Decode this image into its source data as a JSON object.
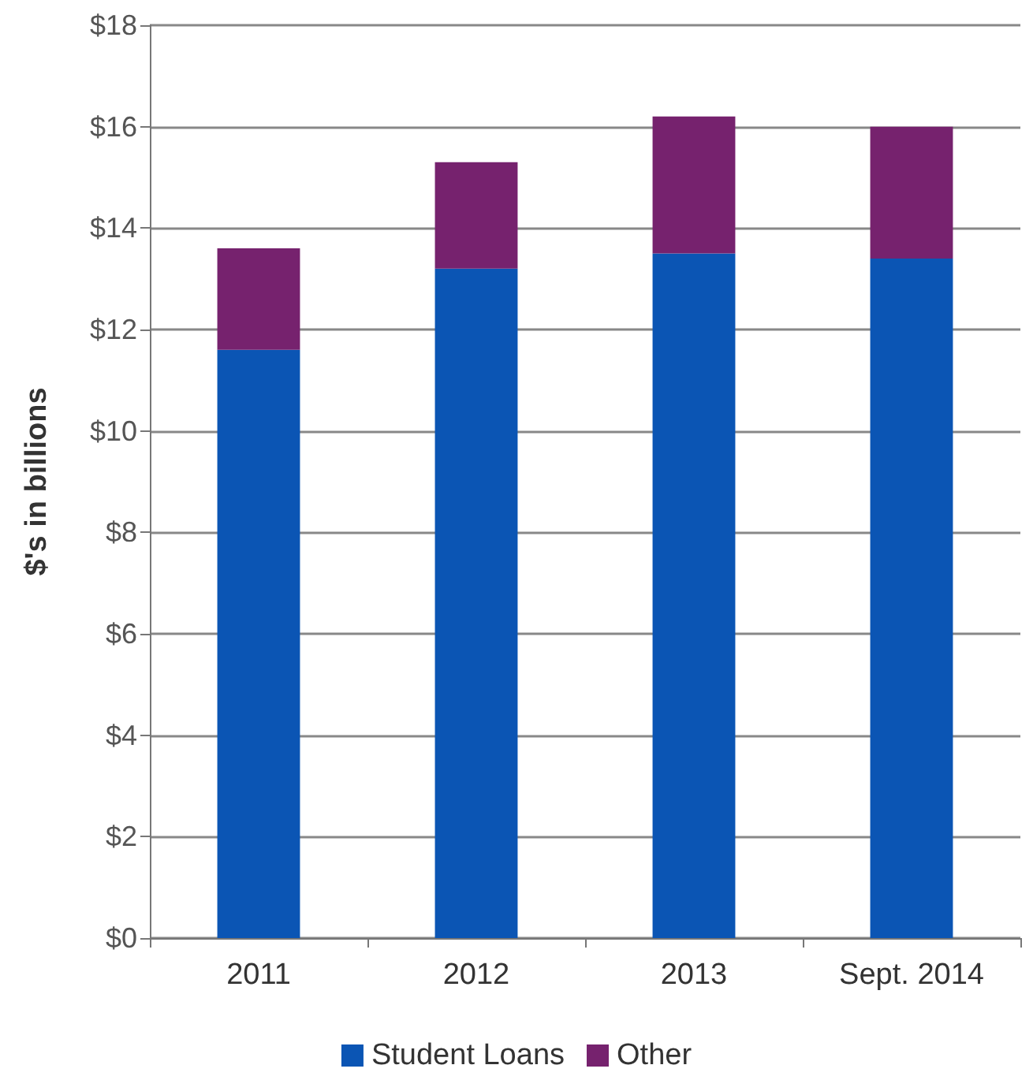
{
  "chart_data": {
    "type": "bar",
    "stacked": true,
    "ylabel": "$'s in billions",
    "categories": [
      "2011",
      "2012",
      "2013",
      "Sept. 2014"
    ],
    "series": [
      {
        "name": "Student Loans",
        "color": "#0b55b4",
        "values": [
          11.6,
          13.2,
          13.5,
          13.4
        ]
      },
      {
        "name": "Other",
        "color": "#76226e",
        "values": [
          2.0,
          2.1,
          2.7,
          2.6
        ]
      }
    ],
    "ylim": [
      0,
      18
    ],
    "yticks": [
      {
        "value": 0,
        "label": "$0"
      },
      {
        "value": 2,
        "label": "$2"
      },
      {
        "value": 4,
        "label": "$4"
      },
      {
        "value": 6,
        "label": "$6"
      },
      {
        "value": 8,
        "label": "$8"
      },
      {
        "value": 10,
        "label": "$10"
      },
      {
        "value": 12,
        "label": "$12"
      },
      {
        "value": 14,
        "label": "$14"
      },
      {
        "value": 16,
        "label": "$16"
      },
      {
        "value": 18,
        "label": "$18"
      }
    ],
    "grid": "y",
    "legend": "bottom"
  }
}
